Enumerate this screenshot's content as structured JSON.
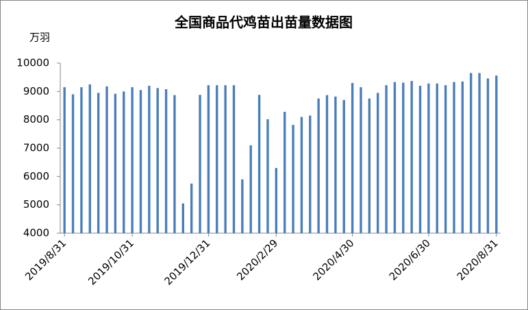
{
  "chart_data": {
    "type": "bar",
    "title": "全国商品代鸡苗出苗量数据图",
    "y_label": "万羽",
    "categories": [
      "2019/8/31",
      null,
      null,
      null,
      null,
      null,
      null,
      null,
      "2019/10/31",
      null,
      null,
      null,
      null,
      null,
      null,
      null,
      null,
      "2019/12/31",
      null,
      null,
      null,
      null,
      null,
      null,
      null,
      "2020/2/29",
      null,
      null,
      null,
      null,
      null,
      null,
      null,
      null,
      "2020/4/30",
      null,
      null,
      null,
      null,
      null,
      null,
      null,
      null,
      "2020/6/30",
      null,
      null,
      null,
      null,
      null,
      null,
      null,
      "2020/8/31"
    ],
    "values": [
      9150,
      8900,
      9150,
      9250,
      8950,
      9180,
      8920,
      9000,
      9150,
      9050,
      9200,
      9120,
      9080,
      8870,
      5050,
      5750,
      8880,
      9220,
      9220,
      9220,
      9220,
      5900,
      7100,
      8880,
      8020,
      6300,
      8280,
      7820,
      8100,
      8150,
      8750,
      8870,
      8820,
      8700,
      9300,
      9150,
      8750,
      8950,
      9220,
      9330,
      9310,
      9370,
      9200,
      9280,
      9280,
      9220,
      9330,
      9350,
      9650,
      9650,
      9460,
      9560
    ],
    "color": "#4a7ebb",
    "ylim": [
      4000,
      10000
    ],
    "yticks": [
      4000,
      5000,
      6000,
      7000,
      8000,
      9000,
      10000
    ],
    "grid": false
  }
}
